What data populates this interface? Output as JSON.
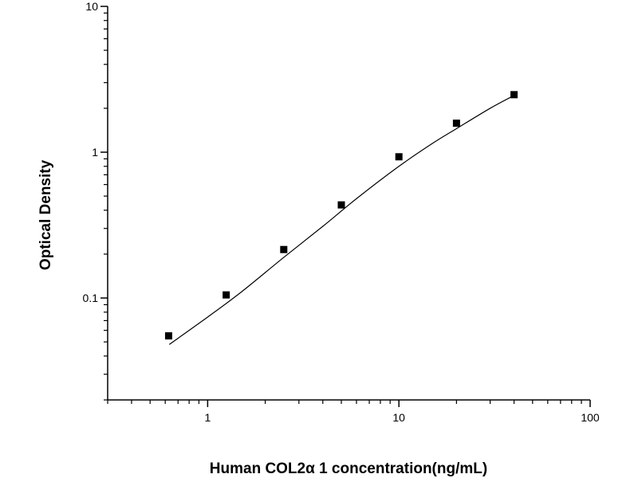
{
  "chart_data": {
    "type": "scatter",
    "title": "",
    "xlabel": "Human COL2α 1 concentration(ng/mL)",
    "ylabel": "Optical Density",
    "x_scale": "log",
    "y_scale": "log",
    "xlim": [
      0.3,
      100
    ],
    "ylim": [
      0.02,
      10
    ],
    "x_ticks": [
      {
        "value": 1,
        "label": "1"
      },
      {
        "value": 10,
        "label": "10"
      },
      {
        "value": 100,
        "label": "100"
      }
    ],
    "y_ticks": [
      {
        "value": 0.1,
        "label": "0.1"
      },
      {
        "value": 1,
        "label": "1"
      },
      {
        "value": 10,
        "label": "10"
      }
    ],
    "grid": false,
    "legend": "none",
    "series": [
      {
        "marker": "square",
        "color": "#000000",
        "points": [
          {
            "x": 0.625,
            "y": 0.055
          },
          {
            "x": 1.25,
            "y": 0.105
          },
          {
            "x": 2.5,
            "y": 0.215
          },
          {
            "x": 5,
            "y": 0.435
          },
          {
            "x": 10,
            "y": 0.93
          },
          {
            "x": 20,
            "y": 1.58
          },
          {
            "x": 40,
            "y": 2.48
          }
        ]
      }
    ],
    "fit_curve": {
      "type": "line",
      "color": "#000000",
      "points": [
        {
          "x": 0.63,
          "y": 0.048
        },
        {
          "x": 1.0,
          "y": 0.074
        },
        {
          "x": 1.5,
          "y": 0.11
        },
        {
          "x": 2.5,
          "y": 0.19
        },
        {
          "x": 4.0,
          "y": 0.31
        },
        {
          "x": 6.0,
          "y": 0.48
        },
        {
          "x": 10,
          "y": 0.8
        },
        {
          "x": 15,
          "y": 1.15
        },
        {
          "x": 20,
          "y": 1.45
        },
        {
          "x": 30,
          "y": 2.0
        },
        {
          "x": 40,
          "y": 2.45
        }
      ]
    }
  }
}
